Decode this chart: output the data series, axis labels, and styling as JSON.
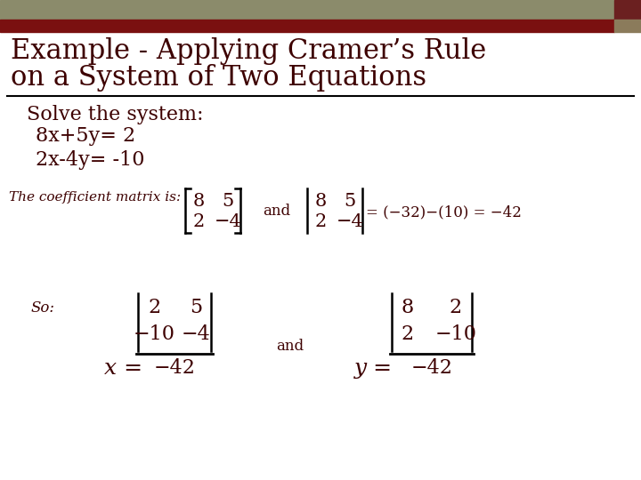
{
  "bg_color": "#ffffff",
  "header_bar_color": "#8b8b6b",
  "header_red_color": "#7a1010",
  "header_sq_color": "#6b2020",
  "header_sq2_color": "#8b7b5b",
  "title_color": "#3d0000",
  "title_line1": "Example - Applying Cramer’s Rule",
  "title_line2": "on a System of Two Equations",
  "title_fontsize": 22,
  "body_fontsize": 16,
  "small_fontsize": 11,
  "mat_fontsize": 15,
  "solve_text": "Solve the system:",
  "eq1": "8x+5y= 2",
  "eq2": "2x-4y= -10",
  "coeff_label": "The coefficient matrix is:",
  "so_label": "So:",
  "and_text": "and",
  "separator_color": "#000000",
  "line_color": "#000000"
}
